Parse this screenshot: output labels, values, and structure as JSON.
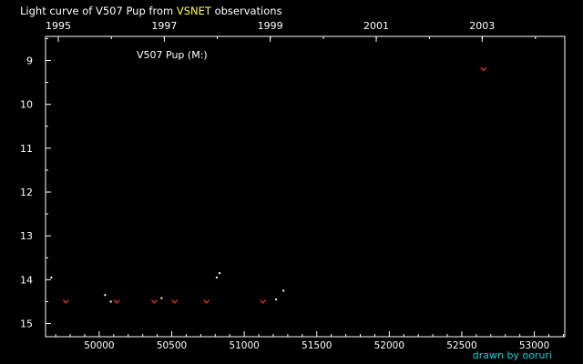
{
  "title": {
    "prefix": "Light curve of V507 Pup from ",
    "source": "VSNET",
    "suffix": " observations"
  },
  "credit": "drawn by ooruri",
  "colors": {
    "background": "#000000",
    "axis": "#ffffff",
    "text": "#ffffff",
    "source": "#ffff44",
    "credit": "#00d8d8",
    "observation": "#ffffff",
    "upper_limit": "#ff3030"
  },
  "chart_data": {
    "type": "scatter",
    "series_label": "V507 Pup (M:)",
    "xlabel": "",
    "ylabel": "",
    "xlim": [
      49630,
      53210
    ],
    "ylim": [
      15.3,
      8.45
    ],
    "y_inverted": true,
    "x_ticks": [
      50000,
      50500,
      51000,
      51500,
      52000,
      52500,
      53000
    ],
    "x_tick_labels": [
      "50000",
      "50500",
      "51000",
      "51500",
      "52000",
      "52500",
      "53000"
    ],
    "year_ticks": [
      {
        "year": "1995",
        "jd": 49718
      },
      {
        "year": "1997",
        "jd": 50449
      },
      {
        "year": "1999",
        "jd": 51179
      },
      {
        "year": "2001",
        "jd": 51910
      },
      {
        "year": "2003",
        "jd": 52640
      }
    ],
    "y_ticks": [
      9,
      10,
      11,
      12,
      13,
      14,
      15
    ],
    "y_tick_labels": [
      "9",
      "10",
      "11",
      "12",
      "13",
      "14",
      "15"
    ],
    "grid": false,
    "observations": [
      {
        "x": 49670,
        "y": 13.95
      },
      {
        "x": 50040,
        "y": 14.35
      },
      {
        "x": 50080,
        "y": 14.5
      },
      {
        "x": 50430,
        "y": 14.42
      },
      {
        "x": 50810,
        "y": 13.95
      },
      {
        "x": 50830,
        "y": 13.85
      },
      {
        "x": 51220,
        "y": 14.45
      },
      {
        "x": 51270,
        "y": 14.25
      }
    ],
    "upper_limits": [
      {
        "x": 49770,
        "y": 14.5
      },
      {
        "x": 50120,
        "y": 14.5
      },
      {
        "x": 50380,
        "y": 14.5
      },
      {
        "x": 50520,
        "y": 14.5
      },
      {
        "x": 50740,
        "y": 14.5
      },
      {
        "x": 51130,
        "y": 14.5
      },
      {
        "x": 52650,
        "y": 9.2
      }
    ]
  }
}
